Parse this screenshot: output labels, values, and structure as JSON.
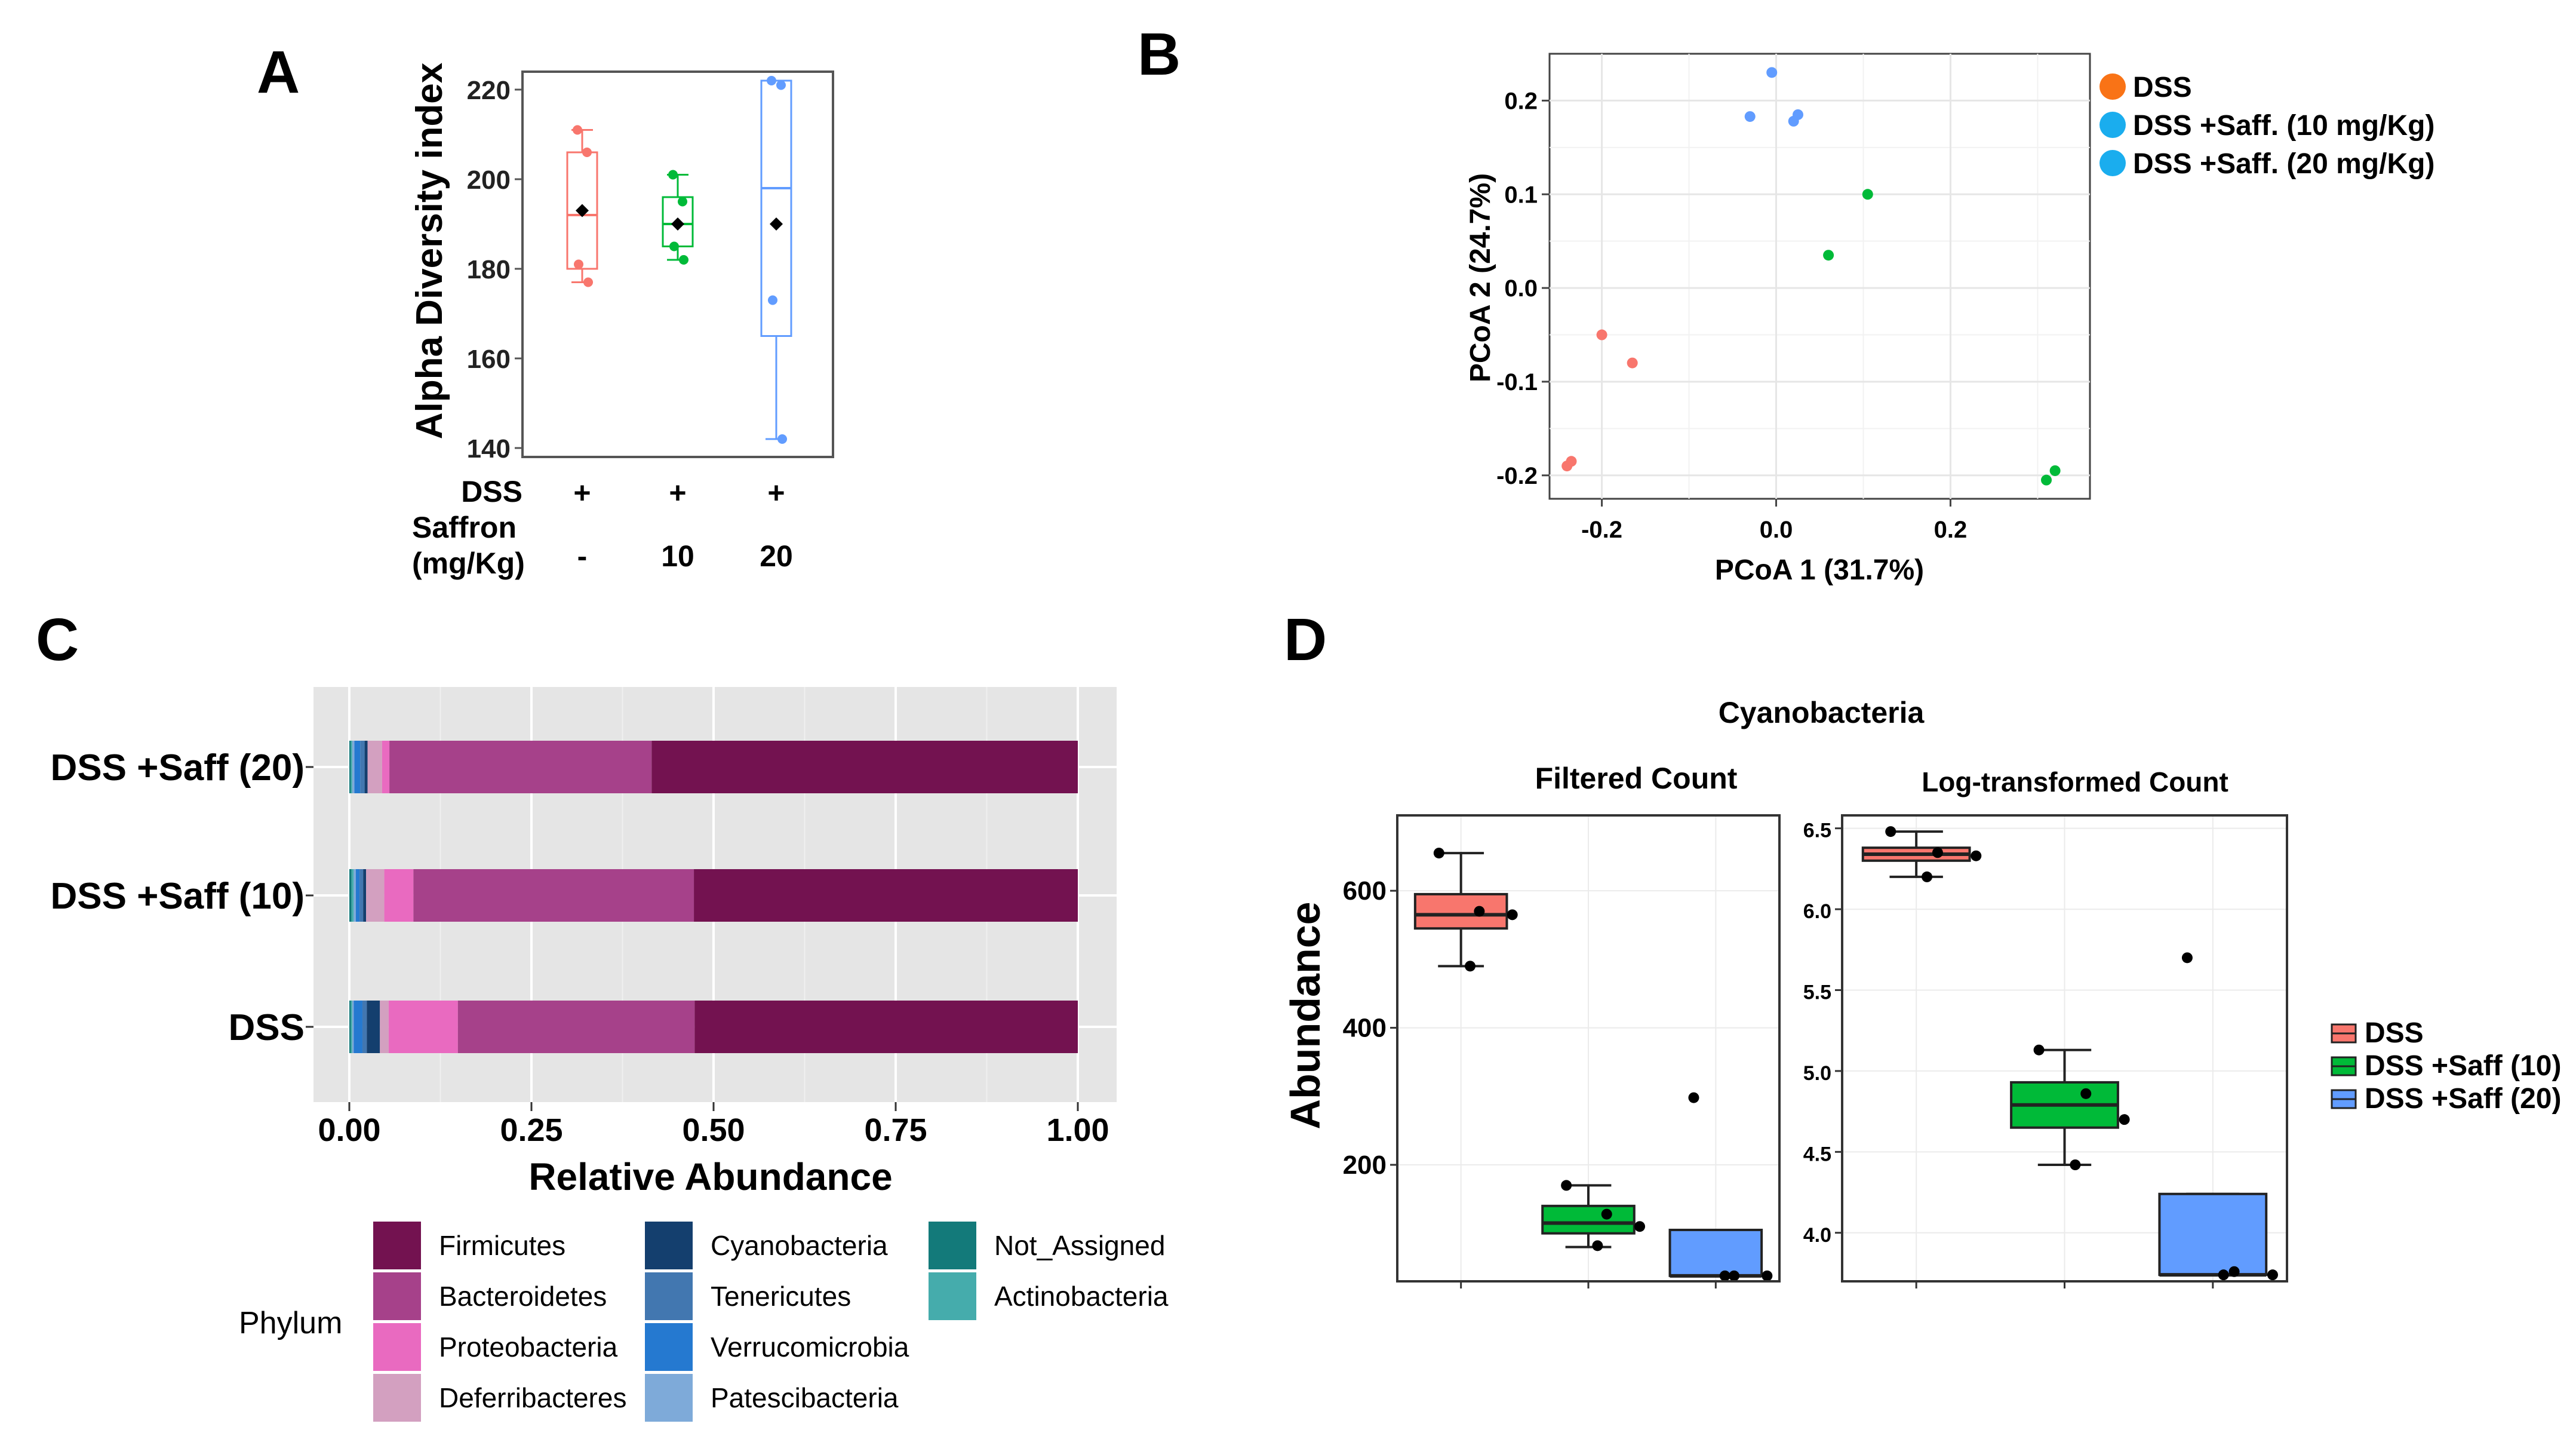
{
  "figure": {
    "panel_labels": [
      "A",
      "B",
      "C",
      "D"
    ]
  },
  "chart_data": [
    {
      "panel": "A",
      "type": "box",
      "ylabel": "Alpha Diversity index",
      "ylim": [
        138,
        224
      ],
      "yticks": [
        "140",
        "160",
        "180",
        "200",
        "220"
      ],
      "row_labels": [
        "DSS",
        "Saffron",
        "(mg/Kg)"
      ],
      "groups": [
        {
          "name": "DSS",
          "dss": "+",
          "saffron": "-",
          "color": "#F8766D",
          "q1": 180,
          "median": 192,
          "q3": 206,
          "min": 177,
          "max": 211,
          "mean": 193,
          "points": [
            211,
            206,
            181,
            177
          ]
        },
        {
          "name": "DSS +Saff. (10 mg/Kg)",
          "dss": "+",
          "saffron": "10",
          "color": "#00BA38",
          "q1": 185,
          "median": 190,
          "q3": 196,
          "min": 182,
          "max": 201,
          "mean": 190,
          "points": [
            201,
            195,
            185,
            182
          ]
        },
        {
          "name": "DSS +Saff. (20 mg/Kg)",
          "dss": "+",
          "saffron": "20",
          "color": "#619CFF",
          "q1": 165,
          "median": 198,
          "q3": 222,
          "min": 142,
          "max": 222,
          "mean": 190,
          "points": [
            222,
            221,
            173,
            142
          ]
        }
      ]
    },
    {
      "panel": "B",
      "type": "scatter",
      "xlabel": "PCoA 1 (31.7%)",
      "ylabel": "PCoA 2 (24.7%)",
      "xlim": [
        -0.26,
        0.36
      ],
      "ylim": [
        -0.225,
        0.25
      ],
      "xticks": [
        "-0.2",
        "0.0",
        "0.2"
      ],
      "yticks": [
        "0.2",
        "0.1",
        "0.0",
        "-0.1",
        "-0.2"
      ],
      "legend": [
        {
          "label": "DSS",
          "color": "#F97316"
        },
        {
          "label": "DSS +Saff. (10 mg/Kg)",
          "color": "#1AADEE"
        },
        {
          "label": "DSS +Saff. (20 mg/Kg)",
          "color": "#1AADEE"
        }
      ],
      "series": [
        {
          "name": "DSS",
          "color": "#F8766D",
          "points": [
            [
              -0.2,
              -0.05
            ],
            [
              -0.165,
              -0.08
            ],
            [
              -0.235,
              -0.185
            ],
            [
              -0.24,
              -0.19
            ]
          ]
        },
        {
          "name": "DSS +Saff. (10 mg/Kg)",
          "color": "#00BA38",
          "points": [
            [
              0.105,
              0.1
            ],
            [
              0.06,
              0.035
            ],
            [
              0.32,
              -0.195
            ],
            [
              0.31,
              -0.205
            ]
          ]
        },
        {
          "name": "DSS +Saff. (20 mg/Kg)",
          "color": "#619CFF",
          "points": [
            [
              -0.005,
              0.23
            ],
            [
              -0.03,
              0.183
            ],
            [
              0.025,
              0.185
            ],
            [
              0.02,
              0.178
            ]
          ]
        }
      ]
    },
    {
      "panel": "C",
      "type": "bar",
      "orientation": "horizontal",
      "stacked": true,
      "xlabel": "Relative Abundance",
      "xlim": [
        0,
        1
      ],
      "xticks": [
        "0.00",
        "0.25",
        "0.50",
        "0.75",
        "1.00"
      ],
      "categories": [
        "DSS +Saff (20)",
        "DSS +Saff (10)",
        "DSS"
      ],
      "legend_title": "Phylum",
      "series": [
        {
          "name": "Not_Assigned",
          "color": "#137A7A",
          "values": [
            0.002,
            0.003,
            0.002
          ]
        },
        {
          "name": "Actinobacteria",
          "color": "#45ACAC",
          "values": [
            0.002,
            0.003,
            0.002
          ]
        },
        {
          "name": "Patescibacteria",
          "color": "#7EAAD9",
          "values": [
            0.003,
            0.003,
            0.002
          ]
        },
        {
          "name": "Verrucomicrobia",
          "color": "#2579D0",
          "values": [
            0.008,
            0.005,
            0.012
          ]
        },
        {
          "name": "Tenericutes",
          "color": "#4277B0",
          "values": [
            0.006,
            0.005,
            0.006
          ]
        },
        {
          "name": "Cyanobacteria",
          "color": "#143F6E",
          "values": [
            0.004,
            0.004,
            0.018
          ]
        },
        {
          "name": "Deferribacteres",
          "color": "#D3A0C0",
          "values": [
            0.02,
            0.025,
            0.012
          ]
        },
        {
          "name": "Proteobacteria",
          "color": "#E96AC0",
          "values": [
            0.01,
            0.04,
            0.095
          ]
        },
        {
          "name": "Bacteroidetes",
          "color": "#A6418A",
          "values": [
            0.36,
            0.385,
            0.325
          ]
        },
        {
          "name": "Firmicutes",
          "color": "#731250",
          "values": [
            0.585,
            0.527,
            0.526
          ]
        }
      ],
      "legend_order": [
        "Firmicutes",
        "Bacteroidetes",
        "Proteobacteria",
        "Deferribacteres",
        "Cyanobacteria",
        "Tenericutes",
        "Verrucomicrobia",
        "Patescibacteria",
        "Not_Assigned",
        "Actinobacteria"
      ]
    },
    {
      "panel": "D",
      "type": "box",
      "title": "Cyanobacteria",
      "ylabel": "Abundance",
      "legend": [
        {
          "label": "DSS",
          "color": "#F8766D"
        },
        {
          "label": "DSS +Saff (10)",
          "color": "#00BA38"
        },
        {
          "label": "DSS +Saff (20)",
          "color": "#619CFF"
        }
      ],
      "facets": [
        {
          "subtitle": "Filtered Count",
          "ylim": [
            30,
            710
          ],
          "yticks": [
            "200",
            "400",
            "600"
          ],
          "ytick_values": [
            200,
            400,
            600
          ],
          "boxes": [
            {
              "color": "#F8766D",
              "min": 490,
              "q1": 545,
              "median": 565,
              "q3": 595,
              "max": 655,
              "points": [
                655,
                570,
                565,
                490
              ]
            },
            {
              "color": "#00BA38",
              "min": 80,
              "q1": 100,
              "median": 115,
              "q3": 140,
              "max": 170,
              "points": [
                170,
                128,
                110,
                82
              ]
            },
            {
              "color": "#619CFF",
              "min": 38,
              "q1": 38,
              "median": 38,
              "q3": 105,
              "max": 105,
              "points": [
                298,
                38,
                38,
                38
              ]
            }
          ]
        },
        {
          "subtitle": "Log-transformed Count",
          "ylim": [
            3.7,
            6.58
          ],
          "yticks": [
            "6.5",
            "6.0",
            "5.5",
            "5.0",
            "4.5",
            "4.0"
          ],
          "ytick_values": [
            6.5,
            6.0,
            5.5,
            5.0,
            4.5,
            4.0
          ],
          "boxes": [
            {
              "color": "#F8766D",
              "min": 6.2,
              "q1": 6.3,
              "median": 6.34,
              "q3": 6.38,
              "max": 6.48,
              "points": [
                6.48,
                6.35,
                6.33,
                6.2
              ]
            },
            {
              "color": "#00BA38",
              "min": 4.42,
              "q1": 4.65,
              "median": 4.79,
              "q3": 4.93,
              "max": 5.13,
              "points": [
                5.13,
                4.86,
                4.7,
                4.42
              ]
            },
            {
              "color": "#619CFF",
              "min": 3.74,
              "q1": 3.74,
              "median": 3.74,
              "q3": 4.24,
              "max": 4.24,
              "points": [
                5.7,
                3.76,
                3.74,
                3.74
              ]
            }
          ]
        }
      ]
    }
  ]
}
